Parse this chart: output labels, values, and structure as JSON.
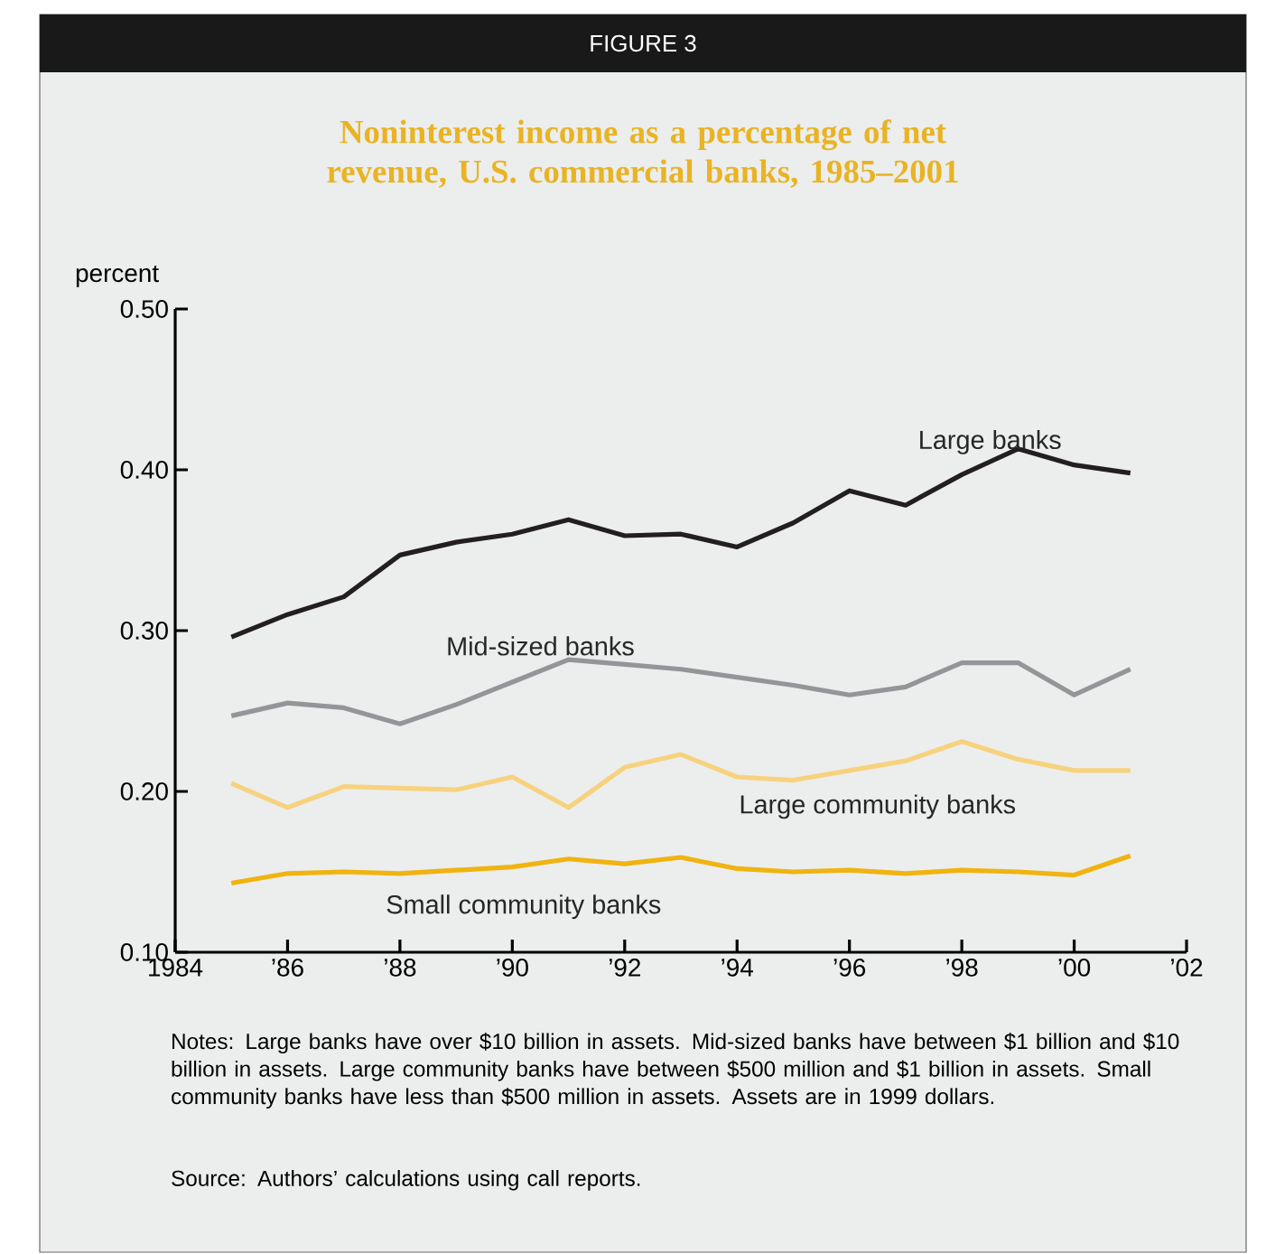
{
  "chart_data": {
    "type": "line",
    "title": "Noninterest income as a percentage of net revenue, U.S. commercial banks, 1985–2001",
    "ylabel": "percent",
    "annotations": [
      "FIGURE 3",
      "Notes: Large banks have over $10 billion in assets. Mid-sized banks have between $1 billion and $10 billion in assets. Large community banks have between $500 million and $1 billion in assets. Small community banks have less than $500 million in assets. Assets are in 1999 dollars.",
      "Source: Authors’ calculations using call reports."
    ],
    "x": [
      1985,
      1986,
      1987,
      1988,
      1989,
      1990,
      1991,
      1992,
      1993,
      1994,
      1995,
      1996,
      1997,
      1998,
      1999,
      2000,
      2001
    ],
    "series": [
      {
        "name": "Large banks",
        "color": "#231f20",
        "values": [
          0.296,
          0.31,
          0.321,
          0.347,
          0.355,
          0.36,
          0.369,
          0.359,
          0.36,
          0.352,
          0.367,
          0.387,
          0.378,
          0.397,
          0.413,
          0.403,
          0.398
        ]
      },
      {
        "name": "Mid-sized banks",
        "color": "#939598",
        "values": [
          0.247,
          0.255,
          0.252,
          0.242,
          0.254,
          0.268,
          0.282,
          0.279,
          0.276,
          0.271,
          0.266,
          0.26,
          0.265,
          0.28,
          0.28,
          0.26,
          0.276
        ]
      },
      {
        "name": "Large community banks",
        "color": "#f7d27e",
        "values": [
          0.205,
          0.19,
          0.203,
          0.202,
          0.201,
          0.209,
          0.19,
          0.215,
          0.223,
          0.209,
          0.207,
          0.213,
          0.219,
          0.231,
          0.22,
          0.213,
          0.213
        ]
      },
      {
        "name": "Small community banks",
        "color": "#f0b310",
        "values": [
          0.143,
          0.149,
          0.15,
          0.149,
          0.151,
          0.153,
          0.158,
          0.155,
          0.159,
          0.152,
          0.15,
          0.151,
          0.149,
          0.151,
          0.15,
          0.148,
          0.16
        ]
      }
    ],
    "xlim": [
      1984,
      2002
    ],
    "xticks": [
      1984,
      {
        "value": 1986,
        "label": "’86"
      },
      {
        "value": 1988,
        "label": "’88"
      },
      {
        "value": 1990,
        "label": "’90"
      },
      {
        "value": 1992,
        "label": "’92"
      },
      {
        "value": 1994,
        "label": "’94"
      },
      {
        "value": 1996,
        "label": "’96"
      },
      {
        "value": 1998,
        "label": "’98"
      },
      {
        "value": 2000,
        "label": "’00"
      },
      {
        "value": 2002,
        "label": "’02"
      }
    ],
    "ylim": [
      0.1,
      0.5
    ],
    "yticks": [
      {
        "value": 0.1,
        "label": "0.10"
      },
      {
        "value": 0.2,
        "label": "0.20"
      },
      {
        "value": 0.3,
        "label": "0.30"
      },
      {
        "value": 0.4,
        "label": "0.40"
      },
      {
        "value": 0.5,
        "label": "0.50"
      }
    ],
    "grid": false,
    "legend": false,
    "marker": "none",
    "line_style": "solid"
  }
}
